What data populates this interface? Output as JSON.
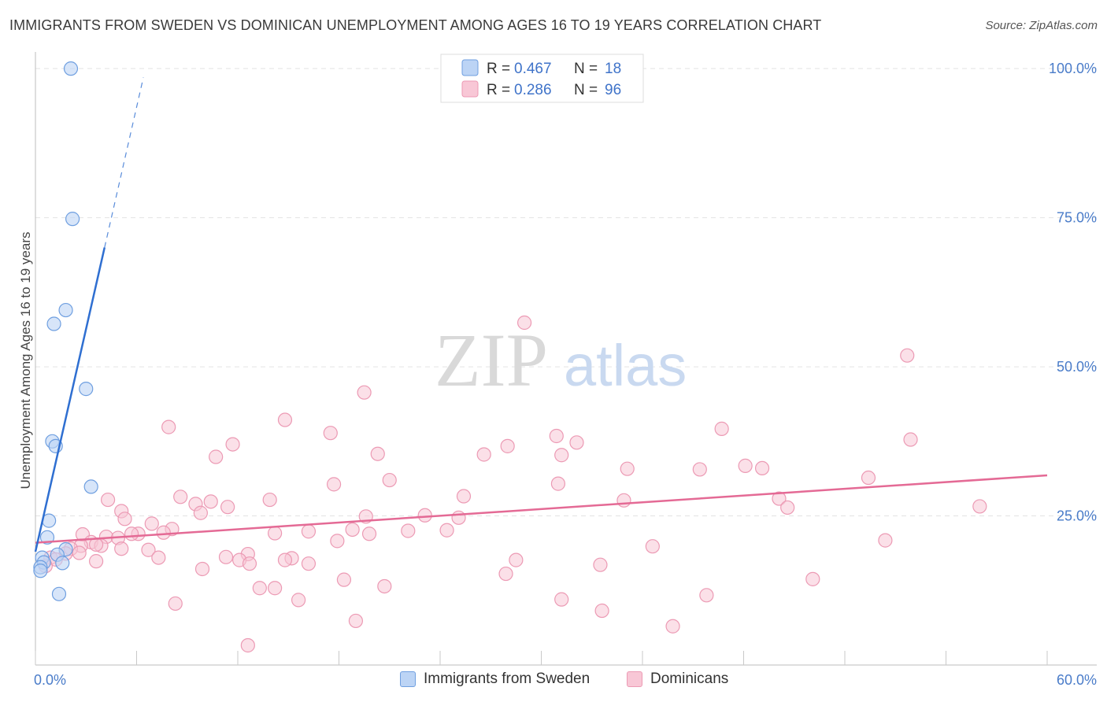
{
  "title": "IMMIGRANTS FROM SWEDEN VS DOMINICAN UNEMPLOYMENT AMONG AGES 16 TO 19 YEARS CORRELATION CHART",
  "source": "Source: ZipAtlas.com",
  "watermark": {
    "zip": "ZIP",
    "atlas": "atlas"
  },
  "colors": {
    "sweden_fill": "#bcd4f5",
    "sweden_stroke": "#6f9fe0",
    "sweden_line": "#2f6fd1",
    "dominican_fill": "#f8c7d6",
    "dominican_stroke": "#ec9ab4",
    "dominican_line": "#e46a95",
    "tick": "#4a7cc9",
    "grid": "#e3e3e3"
  },
  "legend": {
    "rows": [
      {
        "r_label": "R = ",
        "r_value": "0.467",
        "n_label": "N = ",
        "n_value": "18"
      },
      {
        "r_label": "R = ",
        "r_value": "0.286",
        "n_label": "N = ",
        "n_value": "96"
      }
    ]
  },
  "bottom_legend": [
    "Immigrants from Sweden",
    "Dominicans"
  ],
  "chart_data": {
    "type": "scatter",
    "title": "IMMIGRANTS FROM SWEDEN VS DOMINICAN UNEMPLOYMENT AMONG AGES 16 TO 19 YEARS CORRELATION CHART",
    "xlabel": "",
    "ylabel": "Unemployment Among Ages 16 to 19 years",
    "xlim": [
      0,
      60
    ],
    "ylim": [
      0,
      102
    ],
    "x_tick_labels": [
      "0.0%",
      "60.0%"
    ],
    "y_ticks": [
      25,
      50,
      75,
      100
    ],
    "y_tick_labels": [
      "25.0%",
      "50.0%",
      "75.0%",
      "100.0%"
    ],
    "grid": true,
    "legend_position": "top-center",
    "series": [
      {
        "name": "Immigrants from Sweden",
        "R": 0.467,
        "N": 18,
        "trend": {
          "x0": 0.0,
          "y0": 19.0,
          "x1": 4.1,
          "y1": 70.0,
          "dash_x1": 6.4,
          "dash_y1": 98.5
        },
        "points": [
          [
            2.1,
            100.0
          ],
          [
            2.2,
            74.8
          ],
          [
            1.8,
            59.5
          ],
          [
            1.1,
            57.2
          ],
          [
            3.0,
            46.3
          ],
          [
            1.0,
            37.5
          ],
          [
            1.2,
            36.7
          ],
          [
            3.3,
            29.9
          ],
          [
            0.8,
            24.2
          ],
          [
            0.7,
            21.4
          ],
          [
            1.8,
            19.4
          ],
          [
            1.3,
            18.5
          ],
          [
            0.4,
            18.0
          ],
          [
            0.5,
            17.2
          ],
          [
            1.6,
            17.1
          ],
          [
            0.3,
            16.4
          ],
          [
            0.3,
            15.8
          ],
          [
            1.4,
            11.9
          ]
        ]
      },
      {
        "name": "Dominicans",
        "R": 0.286,
        "N": 96,
        "trend": {
          "x0": 0.0,
          "y0": 20.5,
          "x1": 60.0,
          "y1": 31.8
        },
        "points": [
          [
            29.0,
            57.4
          ],
          [
            51.7,
            51.9
          ],
          [
            19.5,
            45.7
          ],
          [
            14.8,
            41.1
          ],
          [
            7.9,
            39.9
          ],
          [
            40.7,
            39.6
          ],
          [
            17.5,
            38.9
          ],
          [
            30.9,
            38.4
          ],
          [
            51.9,
            37.8
          ],
          [
            32.1,
            37.3
          ],
          [
            11.7,
            37.0
          ],
          [
            28.0,
            36.7
          ],
          [
            20.3,
            35.4
          ],
          [
            26.6,
            35.3
          ],
          [
            31.2,
            35.2
          ],
          [
            10.7,
            34.9
          ],
          [
            42.1,
            33.4
          ],
          [
            43.1,
            33.0
          ],
          [
            35.1,
            32.9
          ],
          [
            39.4,
            32.8
          ],
          [
            49.4,
            31.4
          ],
          [
            21.0,
            31.0
          ],
          [
            31.0,
            30.4
          ],
          [
            17.7,
            30.3
          ],
          [
            25.4,
            28.3
          ],
          [
            8.6,
            28.2
          ],
          [
            44.1,
            27.9
          ],
          [
            4.3,
            27.7
          ],
          [
            34.9,
            27.6
          ],
          [
            13.9,
            27.7
          ],
          [
            10.4,
            27.4
          ],
          [
            9.5,
            27.0
          ],
          [
            11.4,
            26.5
          ],
          [
            44.6,
            26.4
          ],
          [
            56.0,
            26.6
          ],
          [
            5.1,
            25.8
          ],
          [
            9.8,
            25.5
          ],
          [
            23.1,
            25.1
          ],
          [
            19.6,
            24.9
          ],
          [
            25.1,
            24.7
          ],
          [
            5.3,
            24.5
          ],
          [
            6.9,
            23.7
          ],
          [
            18.8,
            22.7
          ],
          [
            2.8,
            21.9
          ],
          [
            19.8,
            22.0
          ],
          [
            6.1,
            22.0
          ],
          [
            8.1,
            22.8
          ],
          [
            16.2,
            22.4
          ],
          [
            22.1,
            22.5
          ],
          [
            5.7,
            22.0
          ],
          [
            14.2,
            22.1
          ],
          [
            24.4,
            22.6
          ],
          [
            7.6,
            22.2
          ],
          [
            4.2,
            21.5
          ],
          [
            4.9,
            21.3
          ],
          [
            3.3,
            20.6
          ],
          [
            17.9,
            20.8
          ],
          [
            3.9,
            20.0
          ],
          [
            2.7,
            20.0
          ],
          [
            36.6,
            19.9
          ],
          [
            50.4,
            20.9
          ],
          [
            5.1,
            19.5
          ],
          [
            6.7,
            19.3
          ],
          [
            2.1,
            19.5
          ],
          [
            3.6,
            20.2
          ],
          [
            12.6,
            18.6
          ],
          [
            2.6,
            18.8
          ],
          [
            1.8,
            18.7
          ],
          [
            11.3,
            18.1
          ],
          [
            0.9,
            18.0
          ],
          [
            1.2,
            17.7
          ],
          [
            7.3,
            18.0
          ],
          [
            15.2,
            17.9
          ],
          [
            28.5,
            17.6
          ],
          [
            12.1,
            17.6
          ],
          [
            3.6,
            17.4
          ],
          [
            14.8,
            17.6
          ],
          [
            16.2,
            17.0
          ],
          [
            12.7,
            17.0
          ],
          [
            33.5,
            16.8
          ],
          [
            9.9,
            16.1
          ],
          [
            0.6,
            16.6
          ],
          [
            27.9,
            15.3
          ],
          [
            46.1,
            14.4
          ],
          [
            18.3,
            14.3
          ],
          [
            20.7,
            13.2
          ],
          [
            13.3,
            12.9
          ],
          [
            14.2,
            12.9
          ],
          [
            39.8,
            11.7
          ],
          [
            31.2,
            11.0
          ],
          [
            15.6,
            10.9
          ],
          [
            8.3,
            10.3
          ],
          [
            33.6,
            9.1
          ],
          [
            19.0,
            7.4
          ],
          [
            37.8,
            6.5
          ],
          [
            12.6,
            3.3
          ]
        ]
      }
    ]
  }
}
